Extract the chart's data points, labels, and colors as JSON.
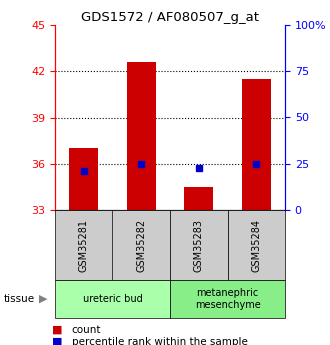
{
  "title": "GDS1572 / AF080507_g_at",
  "samples": [
    "GSM35281",
    "GSM35282",
    "GSM35283",
    "GSM35284"
  ],
  "red_values": [
    37.0,
    42.6,
    34.5,
    41.5
  ],
  "blue_values": [
    35.55,
    36.0,
    35.75,
    36.0
  ],
  "ylim_left": [
    33,
    45
  ],
  "ylim_right": [
    0,
    100
  ],
  "yticks_left": [
    33,
    36,
    39,
    42,
    45
  ],
  "yticks_right": [
    0,
    25,
    50,
    75,
    100
  ],
  "ytick_labels_right": [
    "0",
    "25",
    "50",
    "75",
    "100%"
  ],
  "dotted_lines": [
    36,
    39,
    42
  ],
  "tissue_groups": [
    {
      "label": "ureteric bud",
      "cols": [
        0,
        1
      ],
      "color": "#aaffaa"
    },
    {
      "label": "metanephric\nmesenchyme",
      "cols": [
        2,
        3
      ],
      "color": "#88ee88"
    }
  ],
  "bar_color": "#cc0000",
  "square_color": "#0000cc",
  "sample_box_color": "#cccccc",
  "bar_width": 0.5
}
